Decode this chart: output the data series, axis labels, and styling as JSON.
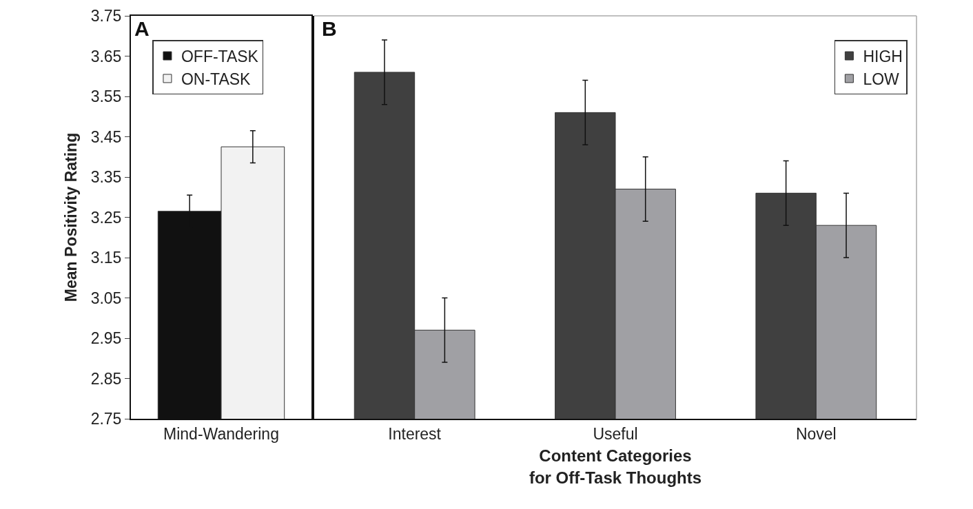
{
  "chart_data": [
    {
      "type": "bar",
      "categories": [
        "Mind-Wandering"
      ],
      "ylabel": "Mean Positivity Rating",
      "ylim": [
        2.75,
        3.75
      ],
      "yticks": [
        2.75,
        2.85,
        2.95,
        3.05,
        3.15,
        3.25,
        3.35,
        3.45,
        3.55,
        3.65,
        3.75
      ],
      "grid": false,
      "legend": "top left",
      "annotations": [
        "A"
      ],
      "series": [
        {
          "name": "OFF-TASK",
          "color": "#111111",
          "values": [
            3.265
          ],
          "errors": [
            0.04
          ]
        },
        {
          "name": "ON-TASK",
          "color": "#f2f2f2",
          "values": [
            3.425
          ],
          "errors": [
            0.04
          ]
        }
      ]
    },
    {
      "type": "bar",
      "categories": [
        "Interest",
        "Useful",
        "Novel"
      ],
      "xlabel": "Content Categories\nfor Off-Task Thoughts",
      "ylim": [
        2.75,
        3.75
      ],
      "yticks": [
        2.75,
        2.85,
        2.95,
        3.05,
        3.15,
        3.25,
        3.35,
        3.45,
        3.55,
        3.65,
        3.75
      ],
      "tick_labels": "x",
      "grid": false,
      "legend": "top right",
      "annotations": [
        "B"
      ],
      "series": [
        {
          "name": "HIGH",
          "color": "#404040",
          "values": [
            3.61,
            3.51,
            3.31
          ],
          "errors": [
            0.08,
            0.08,
            0.08
          ]
        },
        {
          "name": "LOW",
          "color": "#a0a0a4",
          "values": [
            2.97,
            3.32,
            3.23
          ],
          "errors": [
            0.08,
            0.08,
            0.08
          ]
        }
      ]
    }
  ]
}
